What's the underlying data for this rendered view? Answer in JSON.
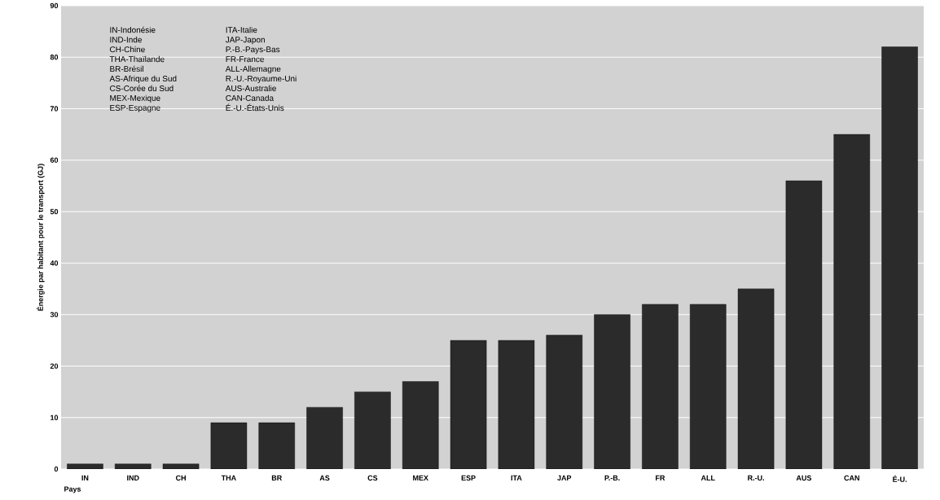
{
  "chart_data": {
    "type": "bar",
    "xlabel": "Pays",
    "ylabel": "Énergie par habitant pour le transport (GJ)",
    "categories": [
      "IN",
      "IND",
      "CH",
      "THA",
      "BR",
      "AS",
      "CS",
      "MEX",
      "ESP",
      "ITA",
      "JAP",
      "P.-B.",
      "FR",
      "ALL",
      "R.-U.",
      "AUS",
      "CAN",
      "É-U."
    ],
    "values": [
      1,
      1,
      1,
      9,
      9,
      12,
      15,
      17,
      25,
      25,
      26,
      30,
      32,
      32,
      35,
      56,
      65,
      82
    ],
    "color": "#2b2b2b",
    "ylim": [
      0,
      90
    ],
    "yticks": [
      0,
      10,
      20,
      30,
      40,
      50,
      60,
      70,
      80,
      90
    ],
    "grid": "y",
    "annotations": [
      "IN-Indonésie",
      "IND-Inde",
      "CH-Chine",
      "THA-Thaïlande",
      "BR-Brésil",
      "AS-Afrique du Sud",
      "CS-Corée du Sud",
      "MEX-Mexique",
      "ESP-Espagne",
      "ITA-Italie",
      "JAP-Japon",
      "P.-B.-Pays-Bas",
      "FR-France",
      "ALL-Allemagne",
      "R.-U.-Royaume-Uni",
      "AUS-Australie",
      "CAN-Canada",
      "É.-U.-États-Unis"
    ]
  }
}
